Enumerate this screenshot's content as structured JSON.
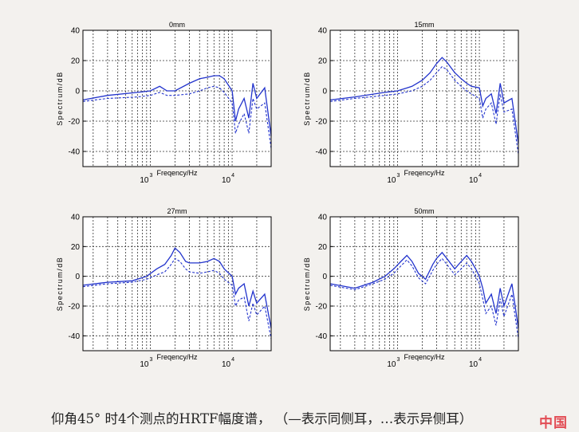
{
  "chart_data": [
    {
      "type": "line",
      "title": "0mm",
      "xlabel": "Freqency/Hz",
      "ylabel": "Spectrum/dB",
      "x_scale": "log",
      "xlim": [
        150,
        30000
      ],
      "ylim": [
        -50,
        40
      ],
      "yticks": [
        -40,
        -20,
        0,
        20,
        40
      ],
      "xtick_labels": [
        {
          "base": "10",
          "exp": "3"
        },
        {
          "base": "10",
          "exp": "4"
        }
      ],
      "grid": true,
      "series": [
        {
          "style": "solid",
          "x": [
            150,
            300,
            700,
            1000,
            1300,
            1600,
            2000,
            3000,
            4000,
            5000,
            6000,
            7000,
            8000,
            10000,
            11000,
            12000,
            14000,
            16000,
            18000,
            20000,
            25000,
            30000
          ],
          "y": [
            -6,
            -3,
            -1,
            0,
            3,
            0,
            0,
            5,
            8,
            9,
            10,
            10,
            8,
            0,
            -20,
            -12,
            -5,
            -18,
            5,
            -5,
            2,
            -30
          ]
        },
        {
          "style": "dashed",
          "x": [
            150,
            300,
            700,
            1000,
            1300,
            1600,
            2000,
            3000,
            4000,
            5000,
            6000,
            7000,
            8000,
            10000,
            11000,
            12000,
            14000,
            16000,
            18000,
            20000,
            25000,
            30000
          ],
          "y": [
            -7,
            -5,
            -4,
            -3,
            -1,
            -3,
            -3,
            -2,
            0,
            2,
            3,
            2,
            -1,
            -8,
            -28,
            -22,
            -15,
            -28,
            -5,
            -12,
            -8,
            -38
          ]
        }
      ]
    },
    {
      "type": "line",
      "title": "15mm",
      "xlabel": "Freqency/Hz",
      "ylabel": "Spectrum/dB",
      "x_scale": "log",
      "xlim": [
        150,
        30000
      ],
      "ylim": [
        -50,
        40
      ],
      "yticks": [
        -40,
        -20,
        0,
        20,
        40
      ],
      "xtick_labels": [
        {
          "base": "10",
          "exp": "3"
        },
        {
          "base": "10",
          "exp": "4"
        }
      ],
      "grid": true,
      "series": [
        {
          "style": "solid",
          "x": [
            150,
            300,
            700,
            1000,
            1500,
            2000,
            2500,
            3000,
            3500,
            4000,
            5000,
            6000,
            7000,
            8000,
            10000,
            11000,
            12000,
            14000,
            16000,
            18000,
            20000,
            25000,
            30000
          ],
          "y": [
            -6,
            -4,
            -1,
            0,
            3,
            7,
            12,
            18,
            22,
            19,
            12,
            8,
            5,
            3,
            2,
            -10,
            -5,
            -2,
            -15,
            5,
            -8,
            -5,
            -35
          ]
        },
        {
          "style": "dashed",
          "x": [
            150,
            300,
            700,
            1000,
            1500,
            2000,
            2500,
            3000,
            3500,
            4000,
            5000,
            6000,
            7000,
            8000,
            10000,
            11000,
            12000,
            14000,
            16000,
            18000,
            20000,
            25000,
            30000
          ],
          "y": [
            -7,
            -5,
            -3,
            -2,
            0,
            3,
            7,
            12,
            16,
            14,
            7,
            3,
            0,
            -2,
            -5,
            -18,
            -12,
            -8,
            -22,
            -2,
            -14,
            -12,
            -42
          ]
        }
      ]
    },
    {
      "type": "line",
      "title": "27mm",
      "xlabel": "Freqency/Hz",
      "ylabel": "Spectrum/dB",
      "x_scale": "log",
      "xlim": [
        150,
        30000
      ],
      "ylim": [
        -50,
        40
      ],
      "yticks": [
        -40,
        -20,
        0,
        20,
        40
      ],
      "xtick_labels": [
        {
          "base": "10",
          "exp": "3"
        },
        {
          "base": "10",
          "exp": "4"
        }
      ],
      "grid": true,
      "series": [
        {
          "style": "solid",
          "x": [
            150,
            300,
            600,
            900,
            1200,
            1500,
            1800,
            2000,
            2300,
            2700,
            3000,
            4000,
            5000,
            6000,
            7000,
            8000,
            10000,
            11000,
            12000,
            14000,
            16000,
            18000,
            20000,
            25000,
            30000
          ],
          "y": [
            -6,
            -4,
            -3,
            0,
            5,
            8,
            14,
            19,
            16,
            10,
            9,
            9,
            10,
            12,
            10,
            5,
            0,
            -12,
            -8,
            -5,
            -20,
            -10,
            -18,
            -12,
            -35
          ]
        },
        {
          "style": "dashed",
          "x": [
            150,
            300,
            600,
            900,
            1200,
            1500,
            1800,
            2000,
            2300,
            2700,
            3000,
            4000,
            5000,
            6000,
            7000,
            8000,
            10000,
            11000,
            12000,
            14000,
            16000,
            18000,
            20000,
            25000,
            30000
          ],
          "y": [
            -7,
            -5,
            -4,
            -2,
            1,
            3,
            8,
            12,
            10,
            5,
            3,
            2,
            3,
            4,
            2,
            -2,
            -6,
            -20,
            -16,
            -14,
            -30,
            -18,
            -26,
            -20,
            -42
          ]
        }
      ]
    },
    {
      "type": "line",
      "title": "50mm",
      "xlabel": "Freqency/Hz",
      "ylabel": "Spectrum/dB",
      "x_scale": "log",
      "xlim": [
        150,
        30000
      ],
      "ylim": [
        -50,
        40
      ],
      "yticks": [
        -40,
        -20,
        0,
        20,
        40
      ],
      "xtick_labels": [
        {
          "base": "10",
          "exp": "3"
        },
        {
          "base": "10",
          "exp": "4"
        }
      ],
      "grid": true,
      "series": [
        {
          "style": "solid",
          "x": [
            150,
            300,
            500,
            700,
            900,
            1100,
            1300,
            1500,
            1800,
            2200,
            2700,
            3000,
            3500,
            4000,
            5000,
            6000,
            7000,
            8000,
            9000,
            10000,
            11000,
            12000,
            14000,
            16000,
            18000,
            20000,
            25000,
            30000
          ],
          "y": [
            -5,
            -8,
            -4,
            0,
            5,
            10,
            14,
            10,
            2,
            -2,
            8,
            12,
            16,
            12,
            5,
            10,
            14,
            10,
            5,
            0,
            -8,
            -18,
            -12,
            -25,
            -8,
            -20,
            -5,
            -35
          ]
        },
        {
          "style": "dashed",
          "x": [
            150,
            300,
            500,
            700,
            900,
            1100,
            1300,
            1500,
            1800,
            2200,
            2700,
            3000,
            3500,
            4000,
            5000,
            6000,
            7000,
            8000,
            9000,
            10000,
            11000,
            12000,
            14000,
            16000,
            18000,
            20000,
            25000,
            30000
          ],
          "y": [
            -6,
            -9,
            -5,
            -2,
            2,
            7,
            11,
            7,
            -1,
            -5,
            4,
            8,
            12,
            8,
            1,
            5,
            9,
            5,
            0,
            -5,
            -15,
            -25,
            -20,
            -33,
            -15,
            -27,
            -12,
            -42
          ]
        }
      ]
    }
  ],
  "caption": {
    "text": "仰角45° 时4个测点的HRTF幅度谱， （—表示同侧耳，…表示异侧耳）"
  },
  "watermark": {
    "text": "中国"
  },
  "colors": {
    "line": "#2233cc",
    "axis": "#000000",
    "grid": "#333333",
    "background": "#f3f1ee"
  }
}
